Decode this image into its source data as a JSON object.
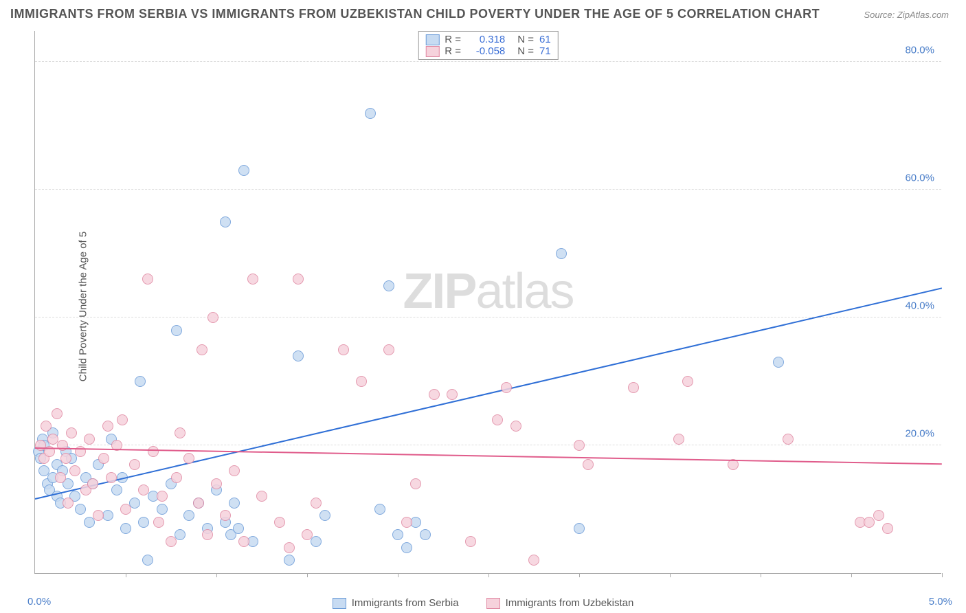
{
  "title": "IMMIGRANTS FROM SERBIA VS IMMIGRANTS FROM UZBEKISTAN CHILD POVERTY UNDER THE AGE OF 5 CORRELATION CHART",
  "source": "Source: ZipAtlas.com",
  "watermark_a": "ZIP",
  "watermark_b": "atlas",
  "ylabel": "Child Poverty Under the Age of 5",
  "chart": {
    "type": "scatter",
    "xlim": [
      0.0,
      5.0
    ],
    "ylim": [
      0.0,
      85.0
    ],
    "ytick_labels": [
      "20.0%",
      "40.0%",
      "60.0%",
      "80.0%"
    ],
    "ytick_values": [
      20,
      40,
      60,
      80
    ],
    "xtick_values": [
      0.5,
      1.0,
      1.5,
      2.0,
      2.5,
      3.0,
      3.5,
      4.0,
      4.5,
      5.0
    ],
    "xlabel_min": "0.0%",
    "xlabel_max": "5.0%",
    "background_color": "#ffffff",
    "grid_color": "#dddddd",
    "axis_color": "#aaaaaa",
    "tick_label_color": "#4a7ec9",
    "marker_radius": 8,
    "marker_stroke_width": 1.2,
    "regression_line_width": 2
  },
  "series": [
    {
      "name": "Immigrants from Serbia",
      "label": "Immigrants from Serbia",
      "fill": "#c7dbf2",
      "stroke": "#6b9bd8",
      "line_color": "#2f6fd6",
      "R_label": "R =",
      "R": "0.318",
      "N_label": "N =",
      "N": "61",
      "regression": {
        "x0": 0.0,
        "y0": 11.5,
        "x1": 5.0,
        "y1": 44.5
      },
      "points": [
        [
          0.02,
          19
        ],
        [
          0.03,
          18
        ],
        [
          0.04,
          21
        ],
        [
          0.05,
          16
        ],
        [
          0.05,
          20
        ],
        [
          0.07,
          14
        ],
        [
          0.08,
          13
        ],
        [
          0.1,
          15
        ],
        [
          0.1,
          22
        ],
        [
          0.12,
          17
        ],
        [
          0.12,
          12
        ],
        [
          0.14,
          11
        ],
        [
          0.15,
          16
        ],
        [
          0.17,
          19
        ],
        [
          0.18,
          14
        ],
        [
          0.2,
          18
        ],
        [
          0.22,
          12
        ],
        [
          0.25,
          10
        ],
        [
          0.28,
          15
        ],
        [
          0.3,
          8
        ],
        [
          0.32,
          14
        ],
        [
          0.35,
          17
        ],
        [
          0.4,
          9
        ],
        [
          0.42,
          21
        ],
        [
          0.45,
          13
        ],
        [
          0.48,
          15
        ],
        [
          0.5,
          7
        ],
        [
          0.55,
          11
        ],
        [
          0.58,
          30
        ],
        [
          0.6,
          8
        ],
        [
          0.62,
          2
        ],
        [
          0.65,
          12
        ],
        [
          0.7,
          10
        ],
        [
          0.75,
          14
        ],
        [
          0.78,
          38
        ],
        [
          0.8,
          6
        ],
        [
          0.85,
          9
        ],
        [
          0.9,
          11
        ],
        [
          0.95,
          7
        ],
        [
          1.0,
          13
        ],
        [
          1.05,
          55
        ],
        [
          1.05,
          8
        ],
        [
          1.08,
          6
        ],
        [
          1.1,
          11
        ],
        [
          1.12,
          7
        ],
        [
          1.15,
          63
        ],
        [
          1.2,
          5
        ],
        [
          1.4,
          2
        ],
        [
          1.45,
          34
        ],
        [
          1.55,
          5
        ],
        [
          1.6,
          9
        ],
        [
          1.85,
          72
        ],
        [
          1.9,
          10
        ],
        [
          1.95,
          45
        ],
        [
          2.0,
          6
        ],
        [
          2.05,
          4
        ],
        [
          2.1,
          8
        ],
        [
          2.15,
          6
        ],
        [
          2.9,
          50
        ],
        [
          3.0,
          7
        ],
        [
          4.1,
          33
        ]
      ]
    },
    {
      "name": "Immigrants from Uzbekistan",
      "label": "Immigrants from Uzbekistan",
      "fill": "#f6d2dc",
      "stroke": "#e089a3",
      "line_color": "#e05c8b",
      "R_label": "R =",
      "R": "-0.058",
      "N_label": "N =",
      "N": "71",
      "regression": {
        "x0": 0.0,
        "y0": 19.5,
        "x1": 5.0,
        "y1": 17.0
      },
      "points": [
        [
          0.03,
          20
        ],
        [
          0.05,
          18
        ],
        [
          0.06,
          23
        ],
        [
          0.08,
          19
        ],
        [
          0.1,
          21
        ],
        [
          0.12,
          25
        ],
        [
          0.14,
          15
        ],
        [
          0.15,
          20
        ],
        [
          0.17,
          18
        ],
        [
          0.18,
          11
        ],
        [
          0.2,
          22
        ],
        [
          0.22,
          16
        ],
        [
          0.25,
          19
        ],
        [
          0.28,
          13
        ],
        [
          0.3,
          21
        ],
        [
          0.32,
          14
        ],
        [
          0.35,
          9
        ],
        [
          0.38,
          18
        ],
        [
          0.4,
          23
        ],
        [
          0.42,
          15
        ],
        [
          0.45,
          20
        ],
        [
          0.48,
          24
        ],
        [
          0.5,
          10
        ],
        [
          0.55,
          17
        ],
        [
          0.6,
          13
        ],
        [
          0.62,
          46
        ],
        [
          0.65,
          19
        ],
        [
          0.68,
          8
        ],
        [
          0.7,
          12
        ],
        [
          0.75,
          5
        ],
        [
          0.78,
          15
        ],
        [
          0.8,
          22
        ],
        [
          0.85,
          18
        ],
        [
          0.9,
          11
        ],
        [
          0.92,
          35
        ],
        [
          0.95,
          6
        ],
        [
          0.98,
          40
        ],
        [
          1.0,
          14
        ],
        [
          1.05,
          9
        ],
        [
          1.1,
          16
        ],
        [
          1.15,
          5
        ],
        [
          1.2,
          46
        ],
        [
          1.25,
          12
        ],
        [
          1.35,
          8
        ],
        [
          1.4,
          4
        ],
        [
          1.45,
          46
        ],
        [
          1.5,
          6
        ],
        [
          1.55,
          11
        ],
        [
          1.7,
          35
        ],
        [
          1.8,
          30
        ],
        [
          1.95,
          35
        ],
        [
          2.05,
          8
        ],
        [
          2.1,
          14
        ],
        [
          2.2,
          28
        ],
        [
          2.3,
          28
        ],
        [
          2.4,
          5
        ],
        [
          2.55,
          24
        ],
        [
          2.6,
          29
        ],
        [
          2.65,
          23
        ],
        [
          2.75,
          2
        ],
        [
          3.0,
          20
        ],
        [
          3.05,
          17
        ],
        [
          3.3,
          29
        ],
        [
          3.55,
          21
        ],
        [
          3.6,
          30
        ],
        [
          3.85,
          17
        ],
        [
          4.15,
          21
        ],
        [
          4.55,
          8
        ],
        [
          4.65,
          9
        ],
        [
          4.7,
          7
        ],
        [
          4.6,
          8
        ]
      ]
    }
  ],
  "legend_bottom": [
    {
      "label": "Immigrants from Serbia"
    },
    {
      "label": "Immigrants from Uzbekistan"
    }
  ]
}
